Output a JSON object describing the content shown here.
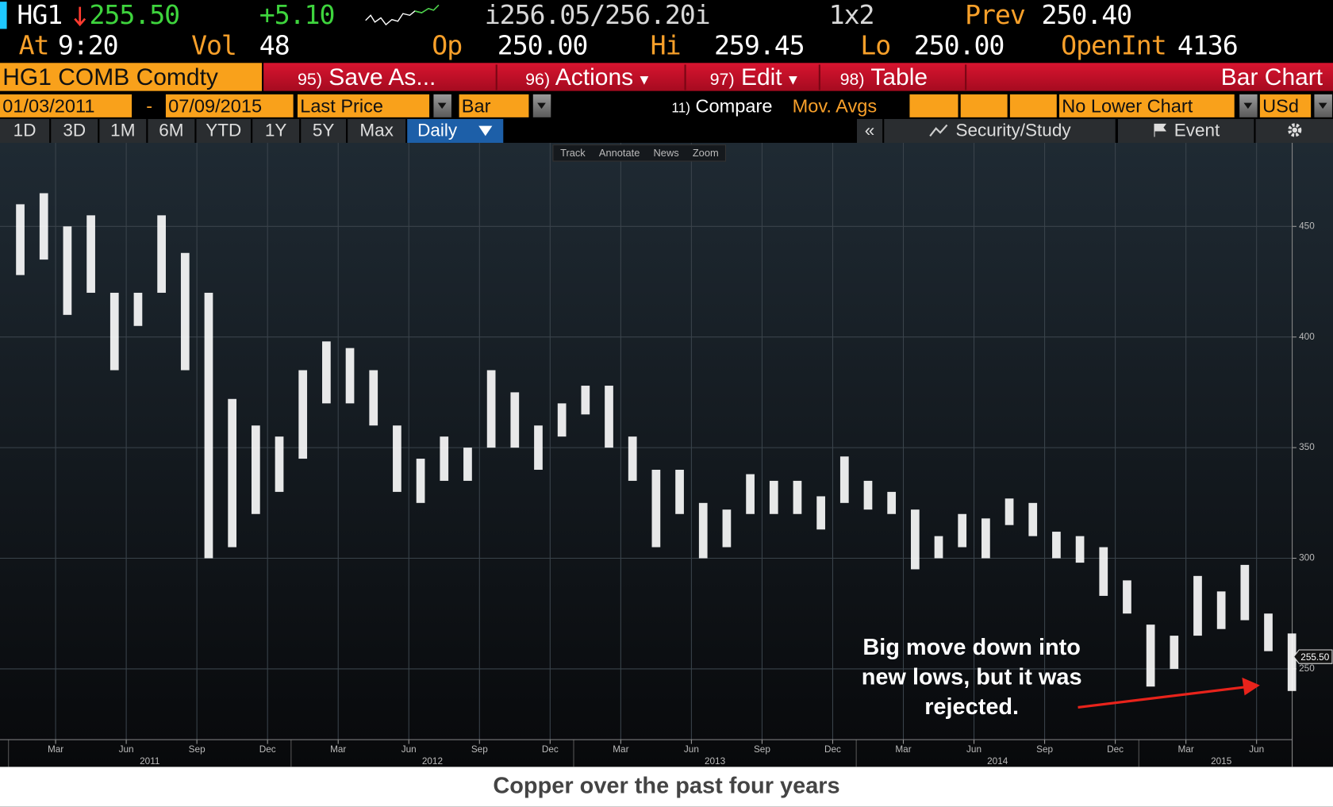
{
  "header": {
    "ticker": "HG1",
    "price": "255.50",
    "change": "+5.10",
    "bid_ask": "i256.05/256.20i",
    "size": "1x2",
    "prev_label": "Prev",
    "prev": "250.40",
    "at_label": "At",
    "time": "9:20",
    "vol_label": "Vol",
    "vol": "48",
    "open_label": "Op",
    "open": "250.00",
    "hi_label": "Hi",
    "hi": "259.45",
    "lo_label": "Lo",
    "lo": "250.00",
    "oi_label": "OpenInt",
    "oi": "4136"
  },
  "toolbar": {
    "security": "HG1 COMB Comdty",
    "buttons": [
      {
        "num": "95)",
        "label": "Save As..."
      },
      {
        "num": "96)",
        "label": "Actions"
      },
      {
        "num": "97)",
        "label": "Edit"
      },
      {
        "num": "98)",
        "label": "Table"
      }
    ],
    "title": "Bar Chart"
  },
  "controls": {
    "start": "01/03/2011",
    "dash": "-",
    "end": "07/09/2015",
    "field": "Last Price",
    "style": "Bar",
    "compare_num": "11)",
    "compare": "Compare",
    "mov_avgs": "Mov. Avgs",
    "lower": "No Lower Chart",
    "currency": "USd"
  },
  "periods": [
    "1D",
    "3D",
    "1M",
    "6M",
    "YTD",
    "1Y",
    "5Y",
    "Max"
  ],
  "frequency": "Daily",
  "nav": "«",
  "security_study": "Security/Study",
  "event": "Event",
  "chart_tools": [
    "Track",
    "Annotate",
    "News",
    "Zoom"
  ],
  "chart_data": {
    "type": "range-bar",
    "color": "#ffffff",
    "categories": [
      "2011-01",
      "2011-02",
      "2011-03",
      "2011-04",
      "2011-05",
      "2011-06",
      "2011-07",
      "2011-08",
      "2011-09",
      "2011-10",
      "2011-11",
      "2011-12",
      "2012-01",
      "2012-02",
      "2012-03",
      "2012-04",
      "2012-05",
      "2012-06",
      "2012-07",
      "2012-08",
      "2012-09",
      "2012-10",
      "2012-11",
      "2012-12",
      "2013-01",
      "2013-02",
      "2013-03",
      "2013-04",
      "2013-05",
      "2013-06",
      "2013-07",
      "2013-08",
      "2013-09",
      "2013-10",
      "2013-11",
      "2013-12",
      "2014-01",
      "2014-02",
      "2014-03",
      "2014-04",
      "2014-05",
      "2014-06",
      "2014-07",
      "2014-08",
      "2014-09",
      "2014-10",
      "2014-11",
      "2014-12",
      "2015-01",
      "2015-02",
      "2015-03",
      "2015-04",
      "2015-05",
      "2015-06",
      "2015-07"
    ],
    "high": [
      460,
      465,
      450,
      455,
      420,
      420,
      455,
      438,
      420,
      372,
      360,
      355,
      385,
      398,
      395,
      385,
      360,
      345,
      355,
      350,
      385,
      375,
      360,
      370,
      378,
      378,
      355,
      340,
      340,
      325,
      322,
      338,
      335,
      335,
      328,
      346,
      335,
      330,
      322,
      310,
      320,
      318,
      327,
      325,
      312,
      310,
      305,
      290,
      270,
      265,
      292,
      285,
      297,
      275,
      266
    ],
    "low": [
      428,
      435,
      410,
      420,
      385,
      405,
      420,
      385,
      300,
      305,
      320,
      330,
      345,
      370,
      370,
      360,
      330,
      325,
      335,
      335,
      350,
      350,
      340,
      355,
      365,
      350,
      335,
      305,
      320,
      300,
      305,
      320,
      320,
      320,
      313,
      325,
      322,
      320,
      295,
      300,
      305,
      300,
      315,
      310,
      300,
      298,
      283,
      275,
      242,
      250,
      265,
      268,
      272,
      258,
      240
    ],
    "ylim": [
      218,
      487
    ],
    "yticks": [
      250,
      300,
      350,
      400,
      450
    ],
    "grid": true,
    "xticks": [
      {
        "value": "2011-03",
        "label": "Mar"
      },
      {
        "value": "2011-06",
        "label": "Jun"
      },
      {
        "value": "2011-09",
        "label": "Sep"
      },
      {
        "value": "2011-12",
        "label": "Dec"
      },
      {
        "value": "2012-03",
        "label": "Mar"
      },
      {
        "value": "2012-06",
        "label": "Jun"
      },
      {
        "value": "2012-09",
        "label": "Sep"
      },
      {
        "value": "2012-12",
        "label": "Dec"
      },
      {
        "value": "2013-03",
        "label": "Mar"
      },
      {
        "value": "2013-06",
        "label": "Jun"
      },
      {
        "value": "2013-09",
        "label": "Sep"
      },
      {
        "value": "2013-12",
        "label": "Dec"
      },
      {
        "value": "2014-03",
        "label": "Mar"
      },
      {
        "value": "2014-06",
        "label": "Jun"
      },
      {
        "value": "2014-09",
        "label": "Sep"
      },
      {
        "value": "2014-12",
        "label": "Dec"
      },
      {
        "value": "2015-03",
        "label": "Mar"
      },
      {
        "value": "2015-06",
        "label": "Jun"
      }
    ],
    "years": [
      "2011",
      "2012",
      "2013",
      "2014",
      "2015"
    ],
    "last_price": {
      "value": 255.5,
      "label": "255.50"
    },
    "annotation": [
      "Big move down into",
      "new lows, but it was",
      "rejected."
    ]
  },
  "caption": "Copper over the past four years"
}
